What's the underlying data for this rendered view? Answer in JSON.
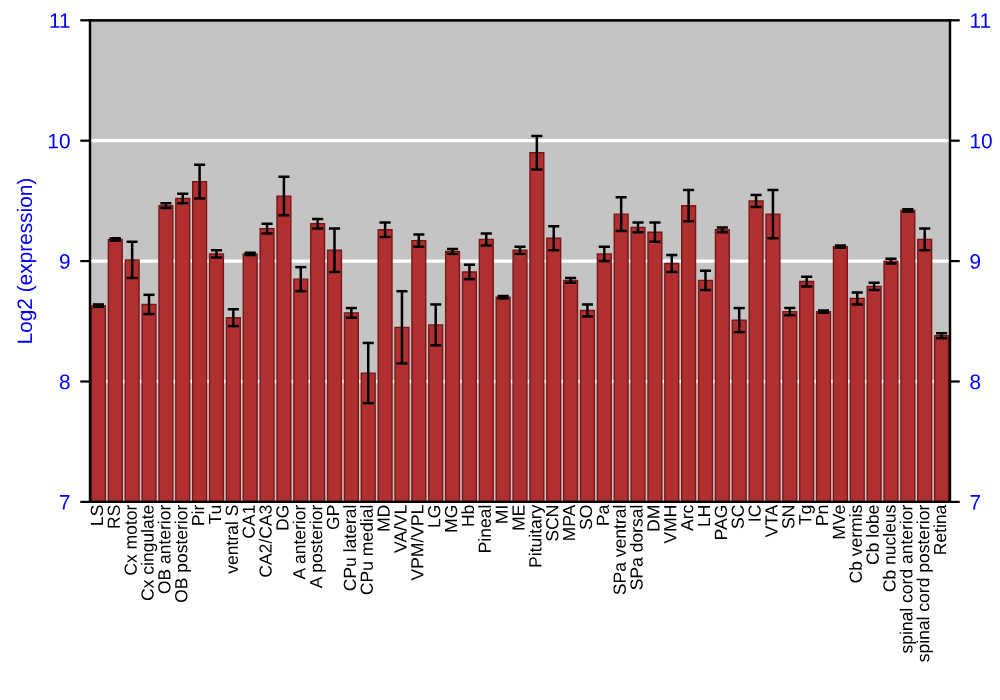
{
  "chart_data": {
    "type": "bar",
    "ylabel": "Log2 (expression)",
    "y2label": null,
    "categories": [
      "LS",
      "RS",
      "Cx motor",
      "Cx cingulate",
      "OB anterior",
      "OB posterior",
      "Pir",
      "Tu",
      "ventral S",
      "CA1",
      "CA2/CA3",
      "DG",
      "A anterior",
      "A posterior",
      "GP",
      "CPu lateral",
      "CPu medial",
      "MD",
      "VA/VL",
      "VPM/VPL",
      "LG",
      "MG",
      "Hb",
      "Pineal",
      "MI",
      "ME",
      "Pituitary",
      "SCN",
      "MPA",
      "SO",
      "Pa",
      "SPa ventral",
      "SPa dorsal",
      "DM",
      "VMH",
      "Arc",
      "LH",
      "PAG",
      "SC",
      "IC",
      "VTA",
      "SN",
      "Tg",
      "Pn",
      "MVe",
      "Cb vermis",
      "Cb lobe",
      "Cb nucleus",
      "spinal cord anterior",
      "spinal cord posterior",
      "Retina"
    ],
    "values": [
      8.63,
      9.18,
      9.01,
      8.64,
      9.46,
      9.52,
      9.66,
      9.06,
      8.53,
      9.06,
      9.27,
      9.54,
      8.85,
      9.31,
      9.09,
      8.57,
      8.07,
      9.26,
      8.45,
      9.17,
      8.47,
      9.08,
      8.91,
      9.18,
      8.7,
      9.09,
      9.9,
      9.19,
      8.84,
      8.59,
      9.06,
      9.39,
      9.28,
      9.24,
      8.98,
      9.46,
      8.84,
      9.26,
      8.51,
      9.5,
      9.39,
      8.58,
      8.83,
      8.58,
      9.12,
      8.69,
      8.79,
      9.0,
      9.42,
      9.18,
      8.38
    ],
    "errors": [
      0.01,
      0.01,
      0.15,
      0.08,
      0.02,
      0.04,
      0.14,
      0.03,
      0.07,
      0.01,
      0.04,
      0.16,
      0.1,
      0.04,
      0.18,
      0.04,
      0.25,
      0.06,
      0.3,
      0.05,
      0.17,
      0.02,
      0.06,
      0.05,
      0.01,
      0.03,
      0.14,
      0.1,
      0.02,
      0.05,
      0.06,
      0.14,
      0.04,
      0.08,
      0.07,
      0.13,
      0.08,
      0.02,
      0.1,
      0.05,
      0.2,
      0.03,
      0.04,
      0.01,
      0.01,
      0.05,
      0.03,
      0.02,
      0.01,
      0.09,
      0.02
    ],
    "color": "#b03030",
    "ylim": [
      7,
      11
    ],
    "yticks": [
      7,
      8,
      9,
      10,
      11
    ],
    "y2lim": [
      7,
      11
    ],
    "y2ticks": [
      7,
      8,
      9,
      10,
      11
    ],
    "grid": "y"
  }
}
